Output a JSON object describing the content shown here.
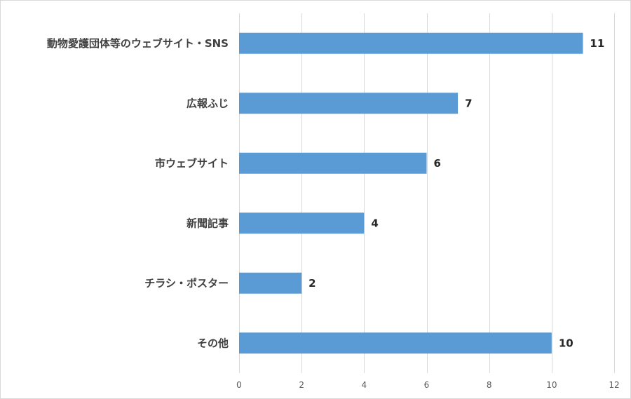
{
  "chart_data": {
    "type": "bar",
    "orientation": "horizontal",
    "title": "",
    "xlabel": "",
    "ylabel": "",
    "categories": [
      "動物愛護団体等のウェブサイト・SNS",
      "広報ふじ",
      "市ウェブサイト",
      "新聞記事",
      "チラシ・ポスター",
      "その他"
    ],
    "values": [
      11,
      7,
      6,
      4,
      2,
      10
    ],
    "value_labels": [
      "11",
      "7",
      "6",
      "4",
      "2",
      "10"
    ],
    "xlim": [
      0,
      12
    ],
    "x_ticks": [
      0,
      2,
      4,
      6,
      8,
      10,
      12
    ],
    "x_tick_labels": [
      "0",
      "2",
      "4",
      "6",
      "8",
      "10",
      "12"
    ],
    "grid": true,
    "legend": "none",
    "colors": {
      "bar": "#5b9bd5",
      "grid": "#d9d9d9",
      "category_text": "#404040",
      "value_text": "#262626",
      "tick_text": "#595959"
    }
  }
}
